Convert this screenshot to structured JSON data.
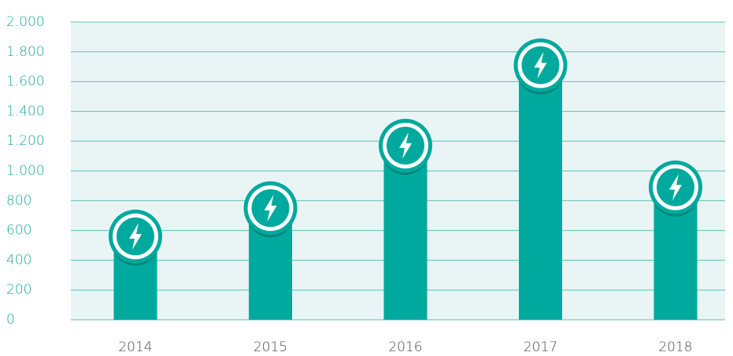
{
  "chart_data": {
    "type": "bar",
    "categories": [
      "2014",
      "2015",
      "2016",
      "2017",
      "2018"
    ],
    "values": [
      560,
      750,
      1170,
      1710,
      890
    ],
    "color": "#00a99d",
    "ylim": [
      0,
      2000
    ],
    "yticks": [
      0,
      200,
      400,
      600,
      800,
      {
        "value": 1000,
        "label": "1.000"
      },
      {
        "value": 1200,
        "label": "1.200"
      },
      {
        "value": 1400,
        "label": "1.400"
      },
      {
        "value": 1600,
        "label": "1.600"
      },
      {
        "value": 1800,
        "label": "1.800"
      },
      {
        "value": 2000,
        "label": "2.000"
      }
    ],
    "grid": true
  }
}
